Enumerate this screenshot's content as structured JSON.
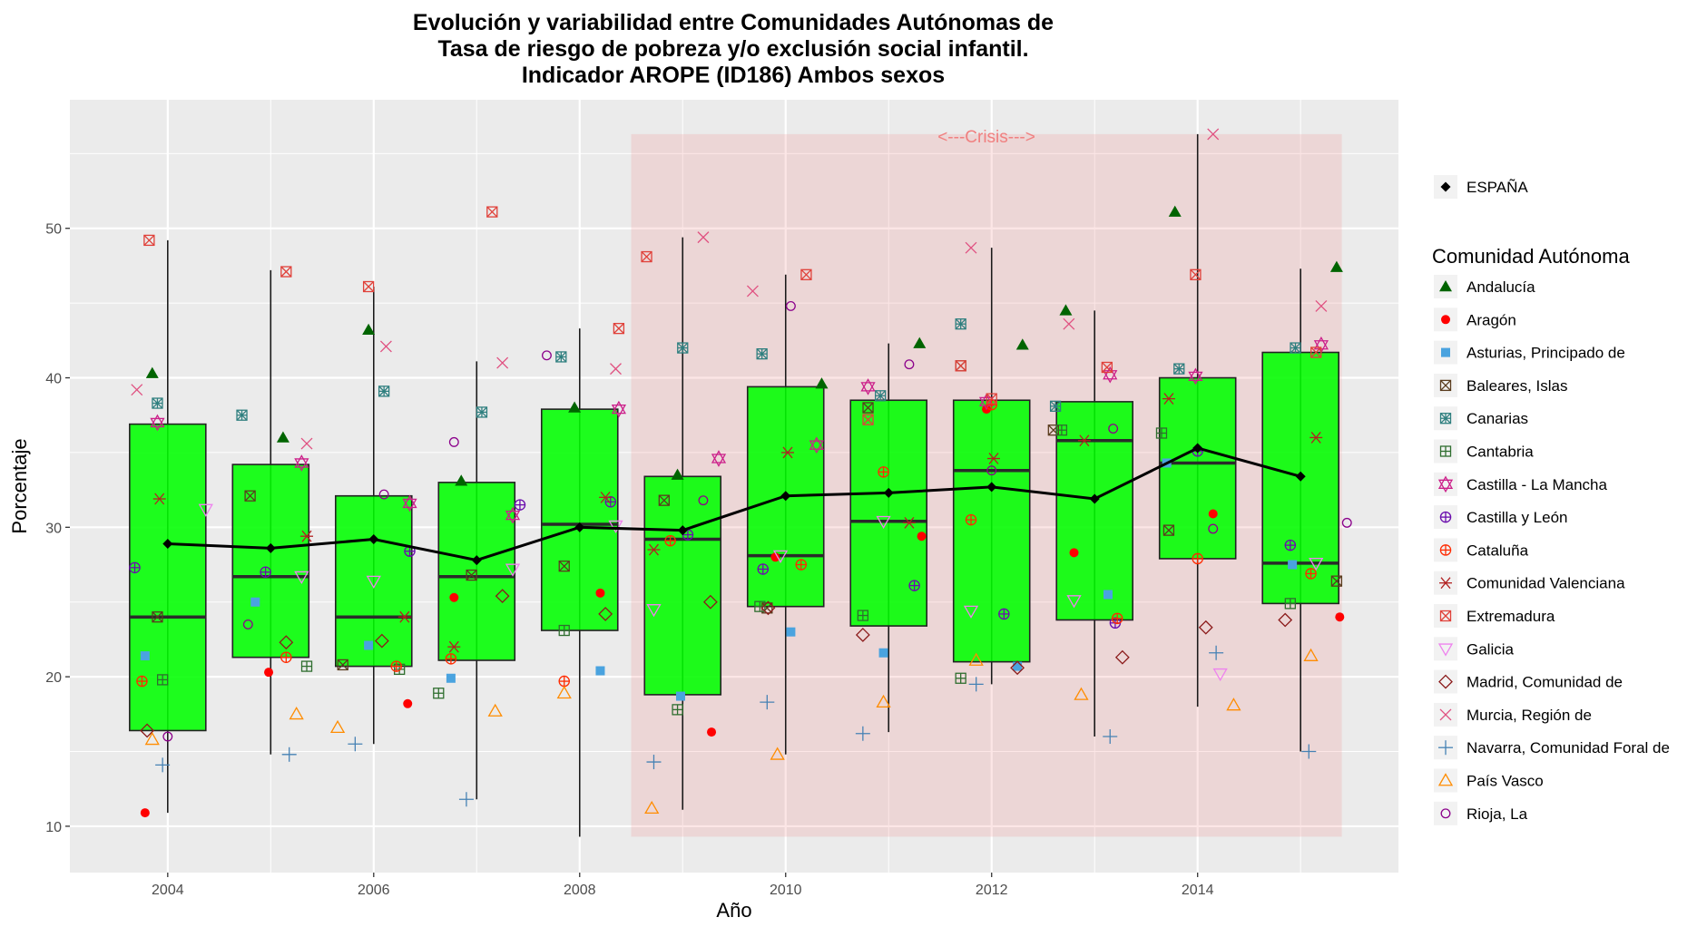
{
  "chart_data": {
    "type": "box",
    "title_lines": [
      "Evolución y variabilidad entre Comunidades Autónomas de",
      "Tasa de riesgo de pobreza y/o exclusión social infantil.",
      "Indicador AROPE (ID186) Ambos sexos"
    ],
    "xlabel": "Año",
    "ylabel": "Porcentaje",
    "xlim": [
      2003.05,
      2015.95
    ],
    "ylim": [
      6.9,
      58.6
    ],
    "x_ticks": [
      2004,
      2006,
      2008,
      2010,
      2012,
      2014
    ],
    "y_ticks": [
      10,
      20,
      30,
      40,
      50
    ],
    "grid": true,
    "background": "#ebebeb",
    "box_fill": "#00ff00",
    "legend_position": "right",
    "crisis_band": {
      "label": "<---Crisis--->",
      "x_start": 2008.5,
      "x_end": 2015.4,
      "y_start": 9.3,
      "y_end": 56.3,
      "color": "#f08080"
    },
    "boxes": [
      {
        "year": 2004,
        "min": 10.9,
        "q1": 16.4,
        "median": 24.0,
        "q3": 36.9,
        "max": 49.2
      },
      {
        "year": 2005,
        "min": 14.8,
        "q1": 21.3,
        "median": 26.7,
        "q3": 34.2,
        "max": 47.2
      },
      {
        "year": 2006,
        "min": 15.5,
        "q1": 20.7,
        "median": 24.0,
        "q3": 32.1,
        "max": 46.1
      },
      {
        "year": 2007,
        "min": 11.8,
        "q1": 21.1,
        "median": 26.7,
        "q3": 33.0,
        "max": 41.1
      },
      {
        "year": 2008,
        "min": 9.3,
        "q1": 23.1,
        "median": 30.2,
        "q3": 37.9,
        "max": 43.3
      },
      {
        "year": 2009,
        "min": 11.1,
        "q1": 18.8,
        "median": 29.2,
        "q3": 33.4,
        "max": 49.4
      },
      {
        "year": 2010,
        "min": 14.8,
        "q1": 24.7,
        "median": 28.1,
        "q3": 39.4,
        "max": 46.9
      },
      {
        "year": 2011,
        "min": 16.3,
        "q1": 23.4,
        "median": 30.4,
        "q3": 38.5,
        "max": 42.3
      },
      {
        "year": 2012,
        "min": 19.5,
        "q1": 21.0,
        "median": 33.8,
        "q3": 38.5,
        "max": 48.7
      },
      {
        "year": 2013,
        "min": 16.0,
        "q1": 23.8,
        "median": 35.8,
        "q3": 38.4,
        "max": 44.5
      },
      {
        "year": 2014,
        "min": 18.0,
        "q1": 27.9,
        "median": 34.3,
        "q3": 40.0,
        "max": 56.3
      },
      {
        "year": 2015,
        "min": 15.0,
        "q1": 24.9,
        "median": 27.6,
        "q3": 41.7,
        "max": 47.3
      }
    ],
    "espana": {
      "name": "ESPAÑA",
      "x": [
        2004,
        2005,
        2006,
        2007,
        2008,
        2009,
        2010,
        2011,
        2012,
        2013,
        2014,
        2015
      ],
      "y": [
        28.9,
        28.6,
        29.2,
        27.8,
        30.0,
        29.8,
        32.1,
        32.3,
        32.7,
        31.9,
        35.3,
        33.4
      ]
    },
    "legend_title": "Comunidad Autónoma",
    "regions": [
      {
        "name": "Andalucía",
        "shape": "triangle-filled",
        "color": "#006400",
        "x": [
          2003.85,
          2005.12,
          2005.95,
          2006.85,
          2007.95,
          2008.95,
          2010.35,
          2011.3,
          2012.3,
          2012.72,
          2013.78,
          2015.35
        ],
        "y": [
          40.3,
          36.0,
          43.2,
          33.1,
          38.0,
          33.5,
          39.6,
          42.3,
          42.2,
          44.5,
          51.1,
          47.4
        ]
      },
      {
        "name": "Aragón",
        "shape": "circle-filled",
        "color": "#ff0000",
        "x": [
          2003.78,
          2004.98,
          2006.33,
          2006.78,
          2008.2,
          2009.28,
          2009.9,
          2011.32,
          2011.95,
          2012.8,
          2014.15,
          2015.38
        ],
        "y": [
          10.9,
          20.3,
          18.2,
          25.3,
          25.6,
          16.3,
          28.0,
          29.4,
          37.9,
          28.3,
          30.9,
          24.0
        ]
      },
      {
        "name": "Asturias, Principado de",
        "shape": "square-filled",
        "color": "#4aa3df",
        "x": [
          2003.78,
          2004.85,
          2005.95,
          2006.75,
          2008.2,
          2008.98,
          2010.05,
          2010.95,
          2012.25,
          2013.13,
          2013.7,
          2014.92
        ],
        "y": [
          21.4,
          25.0,
          22.1,
          19.9,
          20.4,
          18.7,
          23.0,
          21.6,
          20.7,
          25.5,
          34.3,
          27.5
        ]
      },
      {
        "name": "Baleares, Islas",
        "shape": "square-x",
        "color": "#5a3c1e",
        "x": [
          2003.9,
          2004.8,
          2005.7,
          2006.95,
          2007.85,
          2008.82,
          2009.82,
          2010.8,
          2011.7,
          2012.6,
          2013.72,
          2015.35
        ],
        "y": [
          24.0,
          32.1,
          20.8,
          26.8,
          27.4,
          31.8,
          24.6,
          38.0,
          40.8,
          36.5,
          29.8,
          26.4
        ]
      },
      {
        "name": "Canarias",
        "shape": "square-star",
        "color": "#2f7f7f",
        "x": [
          2003.9,
          2004.72,
          2006.1,
          2007.05,
          2007.82,
          2009.0,
          2009.77,
          2010.92,
          2011.7,
          2012.62,
          2013.82,
          2014.95
        ],
        "y": [
          38.3,
          37.5,
          39.1,
          37.7,
          41.4,
          42.0,
          41.6,
          38.8,
          43.6,
          38.1,
          40.6,
          42.0
        ]
      },
      {
        "name": "Cantabria",
        "shape": "square-plus",
        "color": "#2f6e2f",
        "x": [
          2003.95,
          2005.35,
          2006.25,
          2006.63,
          2007.85,
          2008.95,
          2009.75,
          2010.75,
          2011.7,
          2012.68,
          2013.65,
          2014.9
        ],
        "y": [
          19.8,
          20.7,
          20.5,
          18.9,
          23.1,
          17.8,
          24.7,
          24.1,
          19.9,
          36.5,
          36.3,
          24.9
        ]
      },
      {
        "name": "Castilla - La Mancha",
        "shape": "star-of-david",
        "color": "#cc1f8a",
        "x": [
          2003.9,
          2005.3,
          2006.35,
          2007.35,
          2008.38,
          2009.35,
          2010.3,
          2010.8,
          2011.95,
          2013.15,
          2013.98,
          2015.2
        ],
        "y": [
          37.0,
          34.3,
          31.6,
          30.8,
          37.9,
          34.6,
          35.5,
          39.4,
          38.4,
          40.2,
          40.1,
          42.2
        ]
      },
      {
        "name": "Castilla y León",
        "shape": "circle-plus",
        "color": "#6a0dad",
        "x": [
          2003.68,
          2004.95,
          2006.35,
          2007.42,
          2008.3,
          2009.05,
          2009.78,
          2011.25,
          2012.12,
          2013.2,
          2014.0,
          2014.9
        ],
        "y": [
          27.3,
          27.0,
          28.4,
          31.5,
          31.7,
          29.5,
          27.2,
          26.1,
          24.2,
          23.6,
          35.1,
          28.8
        ]
      },
      {
        "name": "Cataluña",
        "shape": "circle-plus",
        "color": "#ff2a00",
        "x": [
          2003.75,
          2005.15,
          2006.22,
          2006.75,
          2007.85,
          2008.88,
          2010.15,
          2010.95,
          2011.8,
          2012.0,
          2013.22,
          2014.0,
          2015.1
        ],
        "y": [
          19.7,
          21.3,
          20.7,
          21.2,
          19.7,
          29.1,
          27.5,
          33.7,
          30.5,
          38.2,
          23.9,
          27.9,
          26.9
        ]
      },
      {
        "name": "Comunidad Valenciana",
        "shape": "asterisk",
        "color": "#b22222",
        "x": [
          2003.92,
          2005.35,
          2006.3,
          2006.78,
          2008.25,
          2008.72,
          2010.02,
          2011.2,
          2012.02,
          2012.9,
          2013.72,
          2015.15
        ],
        "y": [
          31.9,
          29.4,
          24.0,
          22.0,
          32.0,
          28.5,
          35.0,
          30.3,
          34.6,
          35.8,
          38.6,
          36.0
        ]
      },
      {
        "name": "Extremadura",
        "shape": "square-x",
        "color": "#e0413a",
        "x": [
          2003.82,
          2005.15,
          2005.95,
          2007.15,
          2008.38,
          2008.65,
          2010.2,
          2010.8,
          2011.7,
          2012.0,
          2013.12,
          2013.98,
          2015.15
        ],
        "y": [
          49.2,
          47.1,
          46.1,
          51.1,
          43.3,
          48.1,
          46.9,
          37.2,
          40.8,
          38.6,
          40.7,
          46.9,
          41.7
        ]
      },
      {
        "name": "Galicia",
        "shape": "triangle-down",
        "color": "#ee82ee",
        "x": [
          2004.37,
          2005.3,
          2006.0,
          2007.35,
          2008.35,
          2008.72,
          2009.95,
          2010.95,
          2011.8,
          2012.8,
          2014.22,
          2015.15
        ],
        "y": [
          31.2,
          26.7,
          26.4,
          27.2,
          30.1,
          24.5,
          28.1,
          30.4,
          24.4,
          25.1,
          20.2,
          27.6
        ]
      },
      {
        "name": "Madrid, Comunidad de",
        "shape": "diamond",
        "color": "#8b1a1a",
        "x": [
          2003.8,
          2005.15,
          2006.08,
          2007.25,
          2008.25,
          2009.27,
          2009.83,
          2010.75,
          2012.25,
          2013.27,
          2014.08,
          2014.85
        ],
        "y": [
          16.4,
          22.3,
          22.4,
          25.4,
          24.2,
          25.0,
          24.6,
          22.8,
          20.6,
          21.3,
          23.3,
          23.8
        ]
      },
      {
        "name": "Murcia, Región de",
        "shape": "cross",
        "color": "#e05080",
        "x": [
          2003.7,
          2005.35,
          2006.12,
          2007.25,
          2008.35,
          2009.2,
          2009.68,
          2011.8,
          2012.75,
          2014.15,
          2015.2
        ],
        "y": [
          39.2,
          35.6,
          42.1,
          41.0,
          40.6,
          49.4,
          45.8,
          48.7,
          43.6,
          56.3,
          44.8
        ]
      },
      {
        "name": "Navarra, Comunidad Foral de",
        "shape": "plus",
        "color": "#4682b4",
        "x": [
          2003.95,
          2005.18,
          2005.82,
          2006.9,
          2008.72,
          2009.82,
          2010.75,
          2011.85,
          2013.15,
          2014.18,
          2015.08
        ],
        "y": [
          14.1,
          14.8,
          15.5,
          11.8,
          14.3,
          18.3,
          16.2,
          19.5,
          16.0,
          21.6,
          15.0
        ]
      },
      {
        "name": "País Vasco",
        "shape": "triangle-open",
        "color": "#ff8c00",
        "x": [
          2003.85,
          2005.25,
          2005.65,
          2007.18,
          2007.85,
          2008.7,
          2009.92,
          2010.95,
          2011.85,
          2012.87,
          2014.35,
          2015.1
        ],
        "y": [
          15.8,
          17.5,
          16.6,
          17.7,
          18.9,
          11.2,
          14.8,
          18.3,
          21.1,
          18.8,
          18.1,
          21.4
        ]
      },
      {
        "name": "Rioja, La",
        "shape": "circle-open",
        "color": "#8b008b",
        "x": [
          2004.0,
          2004.78,
          2006.1,
          2006.78,
          2007.68,
          2009.2,
          2010.05,
          2011.2,
          2012.0,
          2013.18,
          2014.15,
          2015.45
        ],
        "y": [
          16.0,
          23.5,
          32.2,
          35.7,
          41.5,
          31.8,
          44.8,
          40.9,
          33.8,
          36.6,
          29.9,
          30.3
        ]
      }
    ]
  }
}
